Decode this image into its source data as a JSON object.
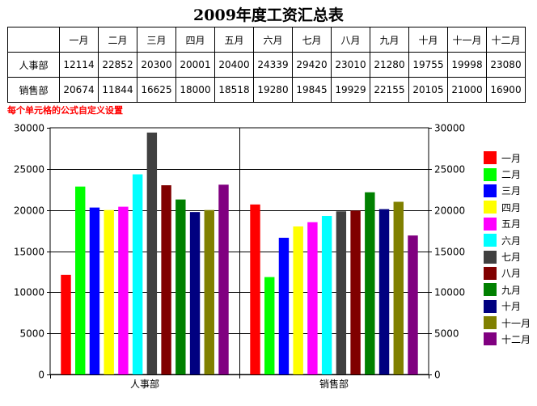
{
  "title": "2009年度工资汇总表",
  "table": {
    "header": [
      "",
      "一月",
      "二月",
      "三月",
      "四月",
      "五月",
      "六月",
      "七月",
      "八月",
      "九月",
      "十月",
      "十一月",
      "十二月"
    ],
    "rows": [
      {
        "label": "人事部",
        "cells": [
          "12114",
          "22852",
          "20300",
          "20001",
          "20400",
          "24339",
          "29420",
          "23010",
          "21280",
          "19755",
          "19998",
          "23080"
        ]
      },
      {
        "label": "销售部",
        "cells": [
          "20674",
          "11844",
          "16625",
          "18000",
          "18518",
          "19280",
          "19845",
          "19929",
          "22155",
          "20105",
          "21000",
          "16900"
        ]
      }
    ]
  },
  "note": "每个单元格的公式自定义设置",
  "chart_data": {
    "type": "bar",
    "title": "",
    "categories": [
      "人事部",
      "销售部"
    ],
    "ylim": [
      0,
      30000
    ],
    "yticks": [
      "0",
      "5000",
      "10000",
      "15000",
      "20000",
      "25000",
      "30000"
    ],
    "grid": true,
    "legend_position": "right",
    "series": [
      {
        "name": "一月",
        "color": "#ff0000",
        "values": [
          12114,
          20674
        ]
      },
      {
        "name": "二月",
        "color": "#00ff00",
        "values": [
          22852,
          11844
        ]
      },
      {
        "name": "三月",
        "color": "#0000ff",
        "values": [
          20300,
          16625
        ]
      },
      {
        "name": "四月",
        "color": "#ffff00",
        "values": [
          20001,
          18000
        ]
      },
      {
        "name": "五月",
        "color": "#ff00ff",
        "values": [
          20400,
          18518
        ]
      },
      {
        "name": "六月",
        "color": "#00ffff",
        "values": [
          24339,
          19280
        ]
      },
      {
        "name": "七月",
        "color": "#404040",
        "values": [
          29420,
          19845
        ]
      },
      {
        "name": "八月",
        "color": "#800000",
        "values": [
          23010,
          19929
        ]
      },
      {
        "name": "九月",
        "color": "#008000",
        "values": [
          21280,
          22155
        ]
      },
      {
        "name": "十月",
        "color": "#000080",
        "values": [
          19755,
          20105
        ]
      },
      {
        "name": "十一月",
        "color": "#808000",
        "values": [
          19998,
          21000
        ]
      },
      {
        "name": "十二月",
        "color": "#800080",
        "values": [
          23080,
          16900
        ]
      }
    ]
  }
}
